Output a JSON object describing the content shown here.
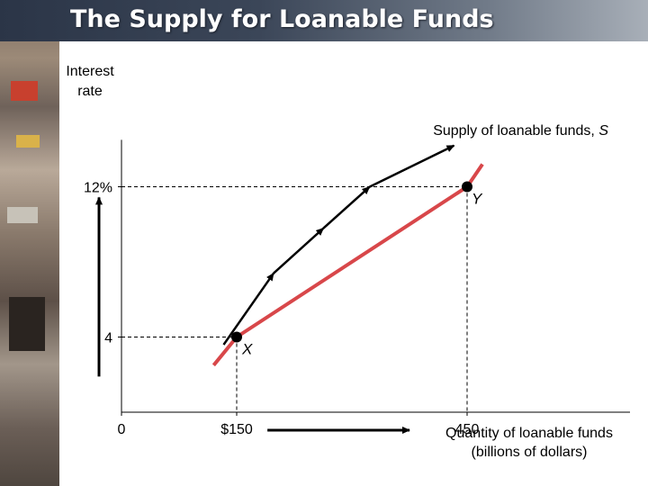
{
  "slide": {
    "title": "The Supply for Loanable Funds"
  },
  "chart_data": {
    "type": "line",
    "title": "The Supply for Loanable Funds",
    "ylabel_lines": [
      "Interest",
      "rate"
    ],
    "xlabel_lines": [
      "Quantity of loanable funds",
      "(billions of dollars)"
    ],
    "x_tick_labels": [
      {
        "value": 0,
        "label": "0"
      },
      {
        "value": 150,
        "label": "$150"
      },
      {
        "value": 450,
        "label": "450"
      }
    ],
    "y_tick_labels": [
      {
        "value": 4,
        "label": "4"
      },
      {
        "value": 12,
        "label": "12%"
      }
    ],
    "series": [
      {
        "name": "Supply of loanable funds, S",
        "label_text": "Supply of loanable funds, ",
        "label_italic": "S",
        "color": "#d8474a",
        "x": [
          120,
          150,
          450,
          470
        ],
        "y": [
          2.5,
          4,
          12,
          13.2
        ]
      }
    ],
    "points": [
      {
        "label": "X",
        "x": 150,
        "y": 4
      },
      {
        "label": "Y",
        "x": 450,
        "y": 12
      }
    ],
    "arrows": [
      {
        "direction": "along-curve",
        "from": {
          "x": 140,
          "y": 3.4
        },
        "to": {
          "x": 205,
          "y": 7.2
        }
      },
      {
        "direction": "along-curve",
        "from": {
          "x": 205,
          "y": 7.2
        },
        "to": {
          "x": 270,
          "y": 9.6
        }
      },
      {
        "direction": "along-curve",
        "from": {
          "x": 270,
          "y": 9.6
        },
        "to": {
          "x": 330,
          "y": 11.8
        }
      },
      {
        "direction": "along-curve",
        "from": {
          "x": 330,
          "y": 11.8
        },
        "to": {
          "x": 440,
          "y": 14.0
        }
      },
      {
        "direction": "vertical-up",
        "from": {
          "y": 1.9
        },
        "to": {
          "y": 11
        }
      },
      {
        "direction": "horizontal-right",
        "from": {
          "x": 190
        },
        "to": {
          "x": 375
        }
      }
    ],
    "xlim": [
      0,
      560
    ],
    "ylim": [
      0,
      14.5
    ],
    "grid": false,
    "legend": "none",
    "colors": {
      "curve": "#d8474a",
      "axis": "#000000",
      "guide": "#000000",
      "point": "#000000"
    }
  }
}
